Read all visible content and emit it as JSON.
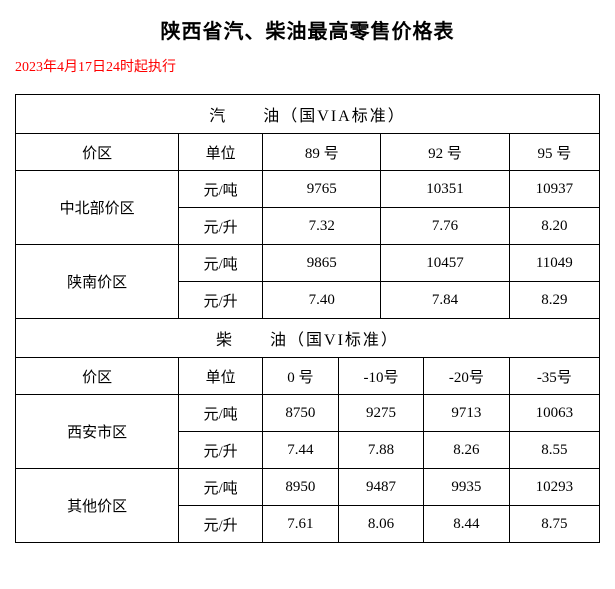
{
  "title": "陕西省汽、柴油最高零售价格表",
  "subtitle": "2023年4月17日24时起执行",
  "gasoline": {
    "header": "汽　　油（国VIA标准）",
    "cols": {
      "region": "价区",
      "unit": "单位",
      "g89": "89 号",
      "g92": "92 号",
      "g95": "95 号"
    },
    "unit_ton": "元/吨",
    "unit_liter": "元/升",
    "central_north": {
      "name": "中北部价区",
      "ton": {
        "g89": "9765",
        "g92": "10351",
        "g95": "10937"
      },
      "liter": {
        "g89": "7.32",
        "g92": "7.76",
        "g95": "8.20"
      }
    },
    "shannan": {
      "name": "陕南价区",
      "ton": {
        "g89": "9865",
        "g92": "10457",
        "g95": "11049"
      },
      "liter": {
        "g89": "7.40",
        "g92": "7.84",
        "g95": "8.29"
      }
    }
  },
  "diesel": {
    "header": "柴　　油（国VI标准）",
    "cols": {
      "region": "价区",
      "unit": "单位",
      "d0": "0 号",
      "dm10": "-10号",
      "dm20": "-20号",
      "dm35": "-35号"
    },
    "unit_ton": "元/吨",
    "unit_liter": "元/升",
    "xian": {
      "name": "西安市区",
      "ton": {
        "d0": "8750",
        "dm10": "9275",
        "dm20": "9713",
        "dm35": "10063"
      },
      "liter": {
        "d0": "7.44",
        "dm10": "7.88",
        "dm20": "8.26",
        "dm35": "8.55"
      }
    },
    "other": {
      "name": "其他价区",
      "ton": {
        "d0": "8950",
        "dm10": "9487",
        "dm20": "9935",
        "dm35": "10293"
      },
      "liter": {
        "d0": "7.61",
        "dm10": "8.06",
        "dm20": "8.44",
        "dm35": "8.75"
      }
    }
  }
}
